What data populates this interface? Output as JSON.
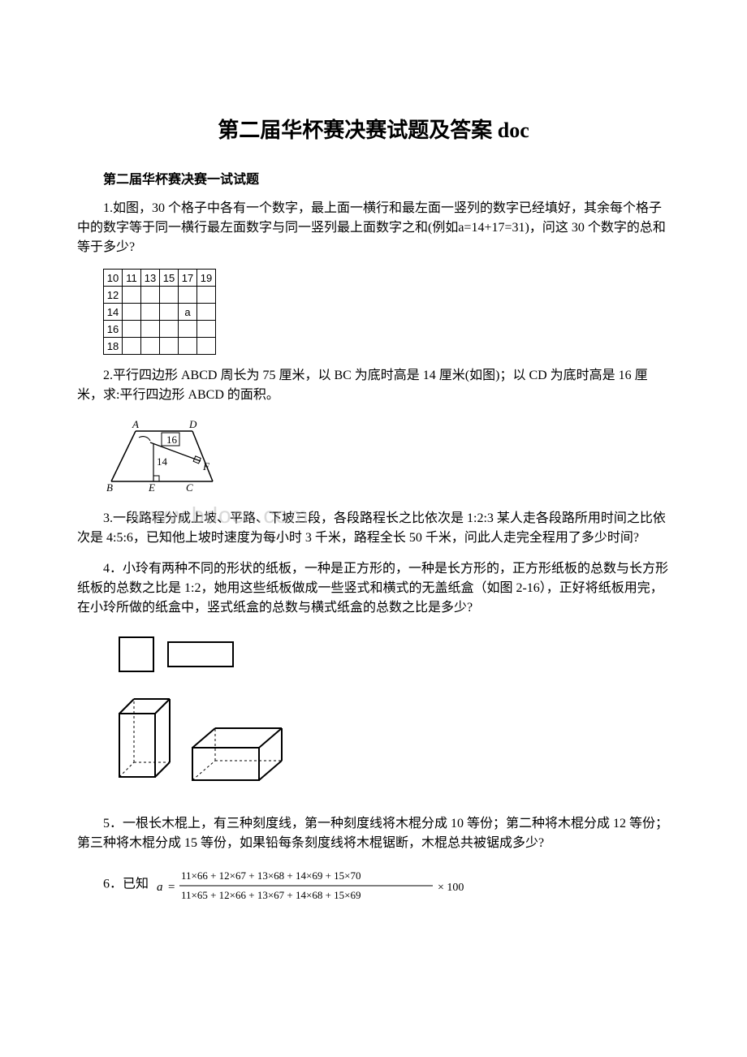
{
  "title": "第二届华杯赛决赛试题及答案 doc",
  "subtitle": "第二届华杯赛决赛一试试题",
  "q1": {
    "text": "1.如图，30 个格子中各有一个数字，最上面一横行和最左面一竖列的数字已经填好，其余每个格子中的数字等于同一横行最左面数字与同一竖列最上面数字之和(例如a=14+17=31)，问这 30 个数字的总和等于多少?",
    "top_row": [
      "10",
      "11",
      "13",
      "15",
      "17",
      "19"
    ],
    "left_col": [
      "12",
      "14",
      "16",
      "18"
    ],
    "marker_pos": {
      "row": 2,
      "col": 4,
      "label": "a"
    }
  },
  "q2": {
    "text": "2.平行四边形 ABCD 周长为 75 厘米，以 BC 为底时高是 14 厘米(如图)；以 CD 为底时高是 16 厘米，求:平行四边形 ABCD 的面积。",
    "h1": "16",
    "h2": "14",
    "labels": {
      "A": "A",
      "B": "B",
      "C": "C",
      "D": "D",
      "E": "E",
      "F": "F"
    }
  },
  "q3": {
    "text": "3.一段路程分成上坡、平路、下坡三段，各段路程长之比依次是 1:2:3 某人走各段路所用时间之比依次是 4:5:6，已知他上坡时速度为每小时 3 千米，路程全长 50 千米，问此人走完全程用了多少时间?"
  },
  "q4": {
    "text": "4．小玲有两种不同的形状的纸板，一种是正方形的，一种是长方形的，正方形纸板的总数与长方形纸板的总数之比是 1:2，她用这些纸板做成一些竖式和横式的无盖纸盒（如图 2-16），正好将纸板用完，在小玲所做的纸盒中，竖式纸盒的总数与横式纸盒的总数之比是多少?"
  },
  "q5": {
    "text": "5．一根长木棍上，有三种刻度线，第一种刻度线将木棍分成 10 等份；第二种将木棍分成 12 等份；第三种将木棍分成 15 等份，如果铅每条刻度线将木棍锯断，木棍总共被锯成多少?"
  },
  "q6": {
    "prefix": "6．已知",
    "var": "a",
    "num": "11×66 + 12×67 + 13×68 + 14×69 + 15×70",
    "den": "11×65 + 12×66 + 13×67 + 14×68 + 15×69",
    "mult": "× 100"
  },
  "watermark": "www.bdocx.com",
  "colors": {
    "text": "#000000",
    "bg": "#ffffff",
    "watermark": "rgba(180,180,180,0.5)"
  }
}
